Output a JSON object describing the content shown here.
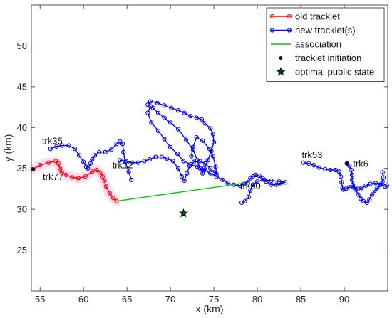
{
  "chart_data": {
    "type": "line",
    "title": "",
    "xlabel": "x (km)",
    "ylabel": "y (km)",
    "xlim": [
      54,
      95
    ],
    "ylim": [
      20,
      55
    ],
    "xticks": [
      55,
      60,
      65,
      70,
      75,
      80,
      85,
      90
    ],
    "yticks": [
      25,
      30,
      35,
      40,
      45,
      50
    ],
    "grid": false,
    "legend": {
      "placement": "top-right",
      "entries": [
        {
          "label": "old tracklet",
          "color": "#ff0000",
          "marker": "circle-line"
        },
        {
          "label": "new tracklet(s)",
          "color": "#0000ff",
          "marker": "circle-line"
        },
        {
          "label": "association",
          "color": "#00cc00",
          "marker": "line"
        },
        {
          "label": "tracklet initiation",
          "color": "#000000",
          "marker": "dot"
        },
        {
          "label": "optimal public state",
          "color": "#004400",
          "marker": "star"
        }
      ]
    },
    "series": [
      {
        "name": "old tracklet",
        "color": "#ff0000",
        "points": [
          [
            54.2,
            34.9
          ],
          [
            55.0,
            35.4
          ],
          [
            56.0,
            35.7
          ],
          [
            56.8,
            35.9
          ],
          [
            57.1,
            35.6
          ],
          [
            57.3,
            35.0
          ],
          [
            57.5,
            34.5
          ],
          [
            58.0,
            34.2
          ],
          [
            58.7,
            33.9
          ],
          [
            59.4,
            33.8
          ],
          [
            60.2,
            34.0
          ],
          [
            61.0,
            34.6
          ],
          [
            61.5,
            34.8
          ],
          [
            61.9,
            34.5
          ],
          [
            62.2,
            34.0
          ],
          [
            62.4,
            33.5
          ],
          [
            62.6,
            32.8
          ],
          [
            63.0,
            32.0
          ],
          [
            63.4,
            31.4
          ],
          [
            63.8,
            31.0
          ]
        ]
      },
      {
        "name": "new tracklet(s)",
        "color": "#0000ff",
        "tracks": [
          {
            "id": "trk35",
            "points": [
              [
                56.2,
                37.4
              ],
              [
                56.9,
                37.7
              ],
              [
                57.5,
                37.8
              ],
              [
                58.3,
                37.8
              ],
              [
                59.0,
                37.4
              ],
              [
                59.5,
                36.6
              ],
              [
                60.0,
                35.8
              ],
              [
                60.3,
                35.2
              ],
              [
                60.5,
                35.0
              ],
              [
                60.8,
                35.6
              ],
              [
                61.0,
                36.1
              ],
              [
                61.3,
                36.6
              ],
              [
                61.8,
                37.0
              ],
              [
                62.5,
                37.0
              ],
              [
                63.2,
                37.3
              ],
              [
                63.8,
                38.0
              ],
              [
                64.2,
                38.3
              ],
              [
                64.5,
                38.0
              ],
              [
                64.6,
                37.0
              ],
              [
                64.8,
                35.8
              ],
              [
                65.2,
                34.6
              ],
              [
                65.5,
                33.6
              ]
            ]
          },
          {
            "id": "trk12",
            "points": [
              [
                64.2,
                36.0
              ],
              [
                64.9,
                35.9
              ],
              [
                65.6,
                35.7
              ],
              [
                66.3,
                35.7
              ],
              [
                67.0,
                35.9
              ],
              [
                67.6,
                36.1
              ],
              [
                68.3,
                36.4
              ],
              [
                69.0,
                36.4
              ],
              [
                69.6,
                36.2
              ],
              [
                70.3,
                35.9
              ],
              [
                70.9,
                35.0
              ],
              [
                71.3,
                34.0
              ],
              [
                71.6,
                33.5
              ],
              [
                71.9,
                34.4
              ],
              [
                72.2,
                35.3
              ],
              [
                72.7,
                35.8
              ],
              [
                73.4,
                35.9
              ],
              [
                74.0,
                35.6
              ],
              [
                74.6,
                35.0
              ],
              [
                75.0,
                34.5
              ],
              [
                75.3,
                34.3
              ],
              [
                75.2,
                35.2
              ],
              [
                74.9,
                36.5
              ],
              [
                74.5,
                37.4
              ],
              [
                73.7,
                38.4
              ],
              [
                73.0,
                38.8
              ],
              [
                72.6,
                37.6
              ],
              [
                72.4,
                36.5
              ]
            ]
          },
          {
            "id": "trk80",
            "points": [
              [
                67.4,
                42.8
              ],
              [
                67.7,
                43.2
              ],
              [
                68.5,
                43.0
              ],
              [
                69.3,
                42.7
              ],
              [
                70.1,
                42.4
              ],
              [
                70.9,
                42.1
              ],
              [
                71.6,
                41.8
              ],
              [
                72.3,
                41.4
              ],
              [
                73.0,
                41.2
              ],
              [
                73.6,
                41.0
              ],
              [
                74.0,
                40.5
              ],
              [
                74.6,
                39.9
              ],
              [
                74.9,
                39.2
              ],
              [
                75.0,
                38.2
              ],
              [
                74.7,
                37.1
              ],
              [
                74.3,
                36.0
              ],
              [
                73.9,
                35.0
              ],
              [
                73.7,
                34.4
              ],
              [
                73.4,
                35.0
              ],
              [
                73.1,
                36.0
              ],
              [
                72.6,
                37.3
              ],
              [
                71.8,
                38.5
              ],
              [
                70.9,
                39.8
              ],
              [
                70.0,
                40.6
              ],
              [
                69.3,
                41.2
              ],
              [
                68.6,
                41.8
              ],
              [
                68.0,
                42.4
              ],
              [
                67.7,
                42.6
              ],
              [
                67.4,
                41.8
              ],
              [
                67.8,
                40.6
              ],
              [
                68.6,
                39.6
              ],
              [
                69.3,
                38.6
              ],
              [
                70.0,
                37.6
              ],
              [
                70.8,
                36.8
              ],
              [
                71.5,
                35.9
              ],
              [
                72.3,
                35.5
              ],
              [
                73.1,
                35.2
              ],
              [
                73.9,
                34.8
              ],
              [
                74.6,
                34.4
              ],
              [
                75.3,
                34.0
              ],
              [
                76.0,
                33.6
              ],
              [
                76.6,
                33.2
              ],
              [
                77.3,
                33.0
              ],
              [
                78.0,
                32.9
              ],
              [
                78.5,
                33.1
              ],
              [
                78.9,
                33.3
              ],
              [
                79.2,
                33.8
              ],
              [
                79.5,
                34.0
              ],
              [
                79.8,
                34.2
              ],
              [
                80.2,
                34.1
              ],
              [
                80.6,
                33.8
              ],
              [
                81.0,
                33.4
              ],
              [
                81.6,
                33.0
              ],
              [
                82.2,
                33.0
              ],
              [
                82.7,
                33.2
              ],
              [
                83.2,
                33.3
              ],
              [
                82.5,
                33.4
              ],
              [
                81.6,
                33.5
              ],
              [
                80.8,
                33.6
              ],
              [
                80.0,
                33.4
              ],
              [
                79.5,
                33.0
              ],
              [
                79.2,
                32.3
              ],
              [
                79.0,
                31.5
              ],
              [
                78.6,
                31.0
              ],
              [
                78.2,
                30.8
              ]
            ]
          },
          {
            "id": "trk53",
            "points": [
              [
                85.3,
                35.7
              ],
              [
                85.9,
                35.6
              ],
              [
                86.5,
                35.4
              ],
              [
                87.1,
                35.1
              ],
              [
                87.8,
                34.9
              ],
              [
                88.4,
                34.8
              ],
              [
                89.0,
                34.8
              ],
              [
                89.4,
                34.6
              ],
              [
                89.6,
                34.0
              ],
              [
                89.7,
                33.3
              ],
              [
                89.8,
                32.6
              ],
              [
                89.9,
                32.4
              ],
              [
                90.2,
                32.5
              ],
              [
                90.6,
                32.7
              ],
              [
                91.0,
                32.7
              ],
              [
                91.3,
                32.4
              ],
              [
                91.6,
                31.8
              ],
              [
                91.9,
                31.3
              ],
              [
                92.2,
                31.0
              ],
              [
                92.6,
                30.8
              ],
              [
                92.9,
                31.2
              ],
              [
                93.2,
                31.8
              ],
              [
                93.5,
                32.3
              ],
              [
                93.8,
                32.6
              ],
              [
                94.1,
                33.0
              ],
              [
                94.4,
                33.4
              ],
              [
                94.5,
                33.9
              ],
              [
                94.4,
                34.5
              ]
            ]
          },
          {
            "id": "trk6",
            "points": [
              [
                90.3,
                35.6
              ],
              [
                90.6,
                35.3
              ],
              [
                90.8,
                34.8
              ],
              [
                90.9,
                34.2
              ],
              [
                90.9,
                33.6
              ],
              [
                91.0,
                33.0
              ],
              [
                91.2,
                32.6
              ],
              [
                91.6,
                32.5
              ],
              [
                92.0,
                32.6
              ],
              [
                92.5,
                32.9
              ],
              [
                93.0,
                33.1
              ],
              [
                93.6,
                33.2
              ],
              [
                94.2,
                33.0
              ],
              [
                94.7,
                32.8
              ],
              [
                94.9,
                32.9
              ]
            ]
          }
        ]
      }
    ],
    "association": {
      "color": "#00cc00",
      "from": [
        63.8,
        31.0
      ],
      "to": [
        78.5,
        33.2
      ]
    },
    "tracklet_initiation": {
      "color": "#000000",
      "points": [
        [
          54.2,
          34.9
        ],
        [
          90.3,
          35.6
        ]
      ]
    },
    "optimal_public_state": {
      "color": "#004400",
      "point": [
        71.5,
        29.5
      ]
    },
    "track_labels": [
      {
        "text": "trk35",
        "x": 56.4,
        "y": 38.0
      },
      {
        "text": "trk77",
        "x": 56.5,
        "y": 33.6
      },
      {
        "text": "trk12",
        "x": 64.5,
        "y": 35.0
      },
      {
        "text": "trk80",
        "x": 79.2,
        "y": 32.5
      },
      {
        "text": "trk53",
        "x": 86.3,
        "y": 36.3
      },
      {
        "text": "trk6",
        "x": 91.9,
        "y": 35.2
      }
    ]
  }
}
